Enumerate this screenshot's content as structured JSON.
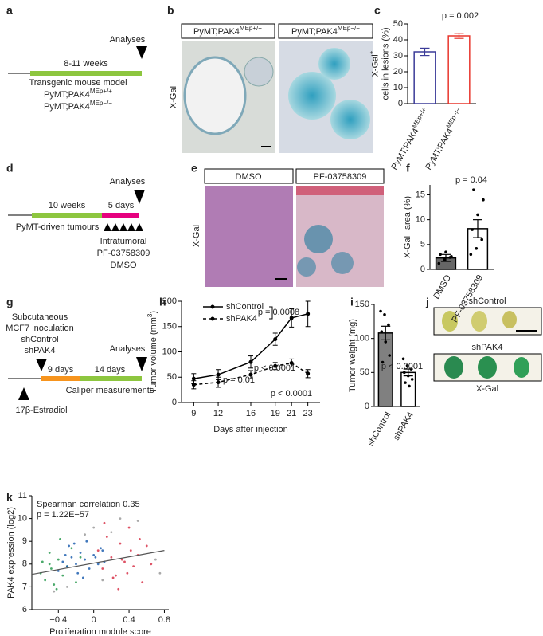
{
  "panel_labels": [
    "a",
    "b",
    "c",
    "d",
    "e",
    "f",
    "g",
    "h",
    "i",
    "j",
    "k"
  ],
  "diagram_a": {
    "duration": "8-11 weeks",
    "end": "Analyses",
    "model": "Transgenic mouse model",
    "genotypes": [
      [
        {
          "t": "PyMT;PAK4"
        },
        {
          "sup": "MEp+/+"
        }
      ],
      [
        {
          "t": "PyMT;PAK4"
        },
        {
          "sup": "MEp−/−"
        }
      ]
    ]
  },
  "images_b": {
    "headers": [
      [
        {
          "t": "PyMT;PAK4"
        },
        {
          "sup": "MEp+/+"
        }
      ],
      [
        {
          "t": "PyMT;PAK4"
        },
        {
          "sup": "MEp−/−"
        }
      ]
    ],
    "stain": "X-Gal"
  },
  "diagram_d": {
    "phase1": "10 weeks",
    "phase2": "5 days",
    "end": "Analyses",
    "model": "PyMT-driven tumours",
    "treatment": [
      "Intratumoral",
      "PF-03758309",
      "DMSO"
    ]
  },
  "images_e": {
    "headers": [
      "DMSO",
      "PF-03758309"
    ],
    "stain": "X-Gal"
  },
  "diagram_g": {
    "setup": [
      "Subcutaneous",
      "MCF7 inoculation"
    ],
    "groups": [
      "shControl",
      "shPAK4"
    ],
    "phase1": "9 days",
    "phase2": "14 days",
    "end": "Analyses",
    "measure": "Caliper measurements",
    "hormone": "17β-Estradiol"
  },
  "images_j": {
    "labels": [
      "shControl",
      "shPAK4"
    ],
    "stain": "X-Gal"
  },
  "chart_data": [
    {
      "type": "bar",
      "ylabel": [
        [
          {
            "t": "X-Gal"
          },
          {
            "sup": "+"
          }
        ],
        "cells in lesions (%)"
      ],
      "categories": [
        [
          {
            "t": "PyMT;"
          },
          {
            "t": "PAK4"
          },
          {
            "sup": "MEp+/+"
          }
        ],
        [
          {
            "t": "PyMT;"
          },
          {
            "t": "PAK4"
          },
          {
            "sup": "MEp−/−"
          }
        ]
      ],
      "values": [
        32.5,
        42.5
      ],
      "errors": [
        2.3,
        1.6
      ],
      "colors": [
        "#3b3b98",
        "#e8352b"
      ],
      "fills": [
        "#ffffff",
        "#ffffff"
      ],
      "ylim": [
        0,
        50
      ],
      "yticks": [
        0,
        10,
        20,
        30,
        40,
        50
      ],
      "annotations": [
        "p = 0.002"
      ]
    },
    {
      "type": "bar",
      "ylabel": [
        [
          {
            "t": "X-Gal"
          },
          {
            "sup": "+"
          },
          {
            "t": " area (%)"
          }
        ]
      ],
      "categories": [
        "DMSO",
        "PF-03758309"
      ],
      "values": [
        2.3,
        8.2
      ],
      "errors": [
        0.7,
        1.8
      ],
      "colors": [
        "#000000",
        "#000000"
      ],
      "fills": [
        "#666666",
        "#ffffff"
      ],
      "points": [
        [
          1.2,
          2.0,
          2.4,
          3.0,
          3.5,
          2.6
        ],
        [
          3.0,
          4.2,
          6.0,
          8.0,
          11.0,
          14.0,
          16.0
        ]
      ],
      "ylim": [
        0,
        17
      ],
      "yticks": [
        0,
        5,
        10,
        15
      ],
      "annotations": [
        "p = 0.04"
      ]
    },
    {
      "type": "line",
      "ylabel": [
        [
          {
            "t": "Tumor volume (mm"
          },
          {
            "sup": "3"
          },
          {
            "t": ")"
          }
        ]
      ],
      "xlabel": "Days after injection",
      "x": [
        9,
        12,
        16,
        19,
        21,
        23
      ],
      "series": [
        {
          "name": "shControl",
          "color": "#000000",
          "line_style": "solid",
          "values": [
            47,
            55,
            80,
            125,
            167,
            175
          ],
          "errors": [
            10,
            10,
            12,
            12,
            18,
            25
          ]
        },
        {
          "name": "shPAK4",
          "color": "#000000",
          "line_style": "dashed",
          "values": [
            35,
            40,
            55,
            72,
            78,
            57
          ],
          "errors": [
            8,
            10,
            8,
            7,
            8,
            8
          ]
        }
      ],
      "xlim": [
        7.5,
        24.5
      ],
      "xticks": [
        9,
        12,
        16,
        19,
        21,
        23
      ],
      "ylim": [
        0,
        200
      ],
      "yticks": [
        0,
        50,
        100,
        150,
        200
      ],
      "annotations": [
        "p = 0.0008",
        "p < 0.0001",
        "p = 0.01",
        "p < 0.0001"
      ]
    },
    {
      "type": "bar",
      "ylabel": [
        "Tumor weight (mg)"
      ],
      "categories": [
        "shControl",
        "shPAK4"
      ],
      "values": [
        108,
        50
      ],
      "errors": [
        10,
        5
      ],
      "colors": [
        "#000000",
        "#000000"
      ],
      "fills": [
        "#808080",
        "#ffffff"
      ],
      "points": [
        [
          140,
          135,
          120,
          110,
          95,
          75,
          65
        ],
        [
          70,
          60,
          55,
          50,
          45,
          40,
          35,
          30
        ]
      ],
      "ylim": [
        0,
        150
      ],
      "yticks": [
        0,
        50,
        100,
        150
      ],
      "annotations": [
        "p < 0.0001"
      ]
    },
    {
      "type": "scatter",
      "ylabel": [
        "PAK4 expression (log2)"
      ],
      "xlabel": "Proliferation module score",
      "series": [
        {
          "color": "#2a9a50",
          "x": [
            -0.6,
            -0.55,
            -0.5,
            -0.45,
            -0.4,
            -0.35,
            -0.3,
            -0.5,
            -0.42,
            -0.25,
            -0.2,
            -0.48,
            -0.38,
            -0.58,
            -0.15
          ],
          "values": [
            7.6,
            7.3,
            8.0,
            7.1,
            8.2,
            7.5,
            7.9,
            8.5,
            6.9,
            8.7,
            7.2,
            7.8,
            9.1,
            8.1,
            8.3
          ]
        },
        {
          "color": "#9a9a9a",
          "x": [
            -0.3,
            -0.1,
            0.1,
            0.3,
            0.5,
            0.7,
            0.75,
            -0.45,
            0.0,
            0.2
          ],
          "values": [
            7.0,
            9.3,
            7.3,
            10.0,
            9.9,
            8.2,
            7.6,
            6.8,
            9.6,
            9.4
          ]
        },
        {
          "color": "#d8344a",
          "x": [
            0.05,
            0.1,
            0.15,
            0.2,
            0.25,
            0.3,
            0.35,
            0.4,
            0.45,
            0.5,
            0.55,
            0.6,
            0.12,
            0.22,
            0.32,
            0.42,
            0.52,
            0.28,
            0.38,
            0.65
          ],
          "values": [
            8.6,
            7.8,
            9.2,
            8.3,
            7.5,
            8.9,
            8.1,
            9.6,
            7.9,
            8.4,
            7.2,
            8.8,
            9.8,
            7.4,
            8.2,
            8.6,
            9.1,
            6.9,
            7.6,
            8.0
          ]
        },
        {
          "color": "#2060b0",
          "x": [
            -0.35,
            -0.3,
            -0.25,
            -0.2,
            -0.15,
            -0.1,
            -0.05,
            0,
            0.05,
            0.1,
            -0.4,
            -0.28,
            -0.18,
            -0.08,
            0.02,
            0.12,
            -0.22,
            -0.12,
            0.08,
            -0.32
          ],
          "values": [
            8.1,
            7.9,
            8.3,
            8.0,
            8.5,
            8.2,
            7.8,
            8.4,
            8.0,
            8.6,
            7.7,
            8.8,
            7.6,
            9.0,
            8.3,
            8.1,
            8.9,
            7.4,
            8.7,
            8.4
          ]
        }
      ],
      "trend": {
        "x": [
          -0.7,
          0.8
        ],
        "values": [
          7.55,
          8.6
        ]
      },
      "xlim": [
        -0.7,
        0.85
      ],
      "xticks": [
        {
          "value": -0.4,
          "label": "−0.4"
        },
        0,
        0.4,
        0.8
      ],
      "ylim": [
        6,
        11
      ],
      "yticks": [
        6,
        7,
        8,
        9,
        10,
        11
      ],
      "annotations": [
        "Spearman correlation 0.35",
        "p = 1.22E−57"
      ]
    }
  ]
}
